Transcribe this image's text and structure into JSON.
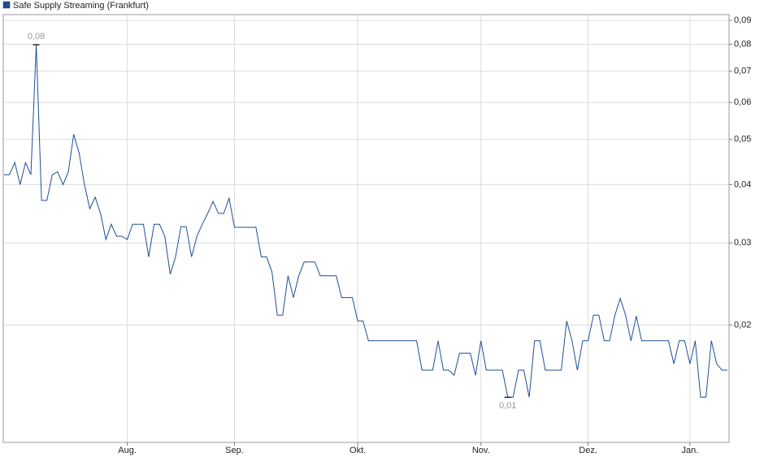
{
  "chart_data": {
    "type": "line",
    "log_scale": true,
    "grid": true,
    "categories": [
      null,
      null,
      null,
      null,
      null,
      null,
      null,
      null,
      null,
      null,
      null,
      null,
      null,
      null,
      null,
      null,
      null,
      null,
      null,
      null,
      null,
      null,
      null,
      "Aug.",
      null,
      null,
      null,
      null,
      null,
      null,
      null,
      null,
      null,
      null,
      null,
      null,
      null,
      null,
      null,
      null,
      null,
      null,
      null,
      "Sep.",
      null,
      null,
      null,
      null,
      null,
      null,
      null,
      null,
      null,
      null,
      null,
      null,
      null,
      null,
      null,
      null,
      null,
      null,
      null,
      null,
      null,
      null,
      "Okt.",
      null,
      null,
      null,
      null,
      null,
      null,
      null,
      null,
      null,
      null,
      null,
      null,
      null,
      null,
      null,
      null,
      null,
      null,
      null,
      null,
      null,
      null,
      "Nov.",
      null,
      null,
      null,
      null,
      null,
      null,
      null,
      null,
      null,
      null,
      null,
      null,
      null,
      null,
      null,
      null,
      null,
      null,
      null,
      "Dez.",
      null,
      null,
      null,
      null,
      null,
      null,
      null,
      null,
      null,
      null,
      null,
      null,
      null,
      null,
      null,
      null,
      null,
      null,
      "Jan.",
      null,
      null,
      null,
      null,
      null,
      null,
      null
    ],
    "series": [
      {
        "name": "Safe Supply Streaming (Frankfurt)",
        "color": "#1c4f96",
        "values": [
          0.042,
          0.042,
          0.0446,
          0.04,
          0.0446,
          0.042,
          0.0798,
          0.037,
          0.037,
          0.042,
          0.0426,
          0.04,
          0.0426,
          0.0513,
          0.0468,
          0.04,
          0.0355,
          0.0376,
          0.0347,
          0.0305,
          0.0329,
          0.031,
          0.031,
          0.0305,
          0.0329,
          0.0329,
          0.0329,
          0.028,
          0.0329,
          0.0329,
          0.031,
          0.0257,
          0.028,
          0.0325,
          0.0325,
          0.028,
          0.031,
          0.0329,
          0.0347,
          0.0368,
          0.0347,
          0.0347,
          0.0374,
          0.0324,
          0.0324,
          0.0324,
          0.0324,
          0.0324,
          0.028,
          0.028,
          0.026,
          0.021,
          0.021,
          0.0255,
          0.0229,
          0.0255,
          0.0273,
          0.0273,
          0.0273,
          0.0255,
          0.0255,
          0.0255,
          0.0255,
          0.0229,
          0.0229,
          0.0229,
          0.0204,
          0.0204,
          0.0185,
          0.0185,
          0.0185,
          0.0185,
          0.0185,
          0.0185,
          0.0185,
          0.0185,
          0.0185,
          0.0185,
          0.016,
          0.016,
          0.016,
          0.0185,
          0.016,
          0.016,
          0.0156,
          0.0174,
          0.0174,
          0.0174,
          0.0156,
          0.0185,
          0.016,
          0.016,
          0.016,
          0.016,
          0.014,
          0.014,
          0.016,
          0.016,
          0.014,
          0.0185,
          0.0185,
          0.016,
          0.016,
          0.016,
          0.016,
          0.0204,
          0.0185,
          0.016,
          0.0185,
          0.0185,
          0.021,
          0.021,
          0.0185,
          0.0185,
          0.021,
          0.0228,
          0.021,
          0.0185,
          0.0209,
          0.0185,
          0.0185,
          0.0185,
          0.0185,
          0.0185,
          0.0185,
          0.0165,
          0.0185,
          0.0185,
          0.0165,
          0.0185,
          0.014,
          0.014,
          0.0185,
          0.0165,
          0.016,
          0.016
        ],
        "value_labels": [
          null,
          null,
          null,
          null,
          null,
          null,
          "0,08",
          null,
          null,
          null,
          null,
          null,
          null,
          null,
          null,
          null,
          null,
          null,
          null,
          null,
          null,
          null,
          null,
          null,
          null,
          null,
          null,
          null,
          null,
          null,
          null,
          null,
          null,
          null,
          null,
          null,
          null,
          null,
          null,
          null,
          null,
          null,
          null,
          null,
          null,
          null,
          null,
          null,
          null,
          null,
          null,
          null,
          null,
          null,
          null,
          null,
          null,
          null,
          null,
          null,
          null,
          null,
          null,
          null,
          null,
          null,
          null,
          null,
          null,
          null,
          null,
          null,
          null,
          null,
          null,
          null,
          null,
          null,
          null,
          null,
          null,
          null,
          null,
          null,
          null,
          null,
          null,
          null,
          null,
          null,
          null,
          null,
          null,
          null,
          "0,01",
          null,
          null,
          null,
          null,
          null,
          null,
          null,
          null,
          null,
          null,
          null,
          null,
          null,
          null,
          null,
          null,
          null,
          null,
          null,
          null,
          null,
          null,
          null,
          null,
          null,
          null,
          null,
          null,
          null,
          null,
          null,
          null,
          null,
          null,
          null,
          null,
          null,
          null,
          null,
          null,
          null
        ]
      }
    ],
    "ylim": [
      0.0112,
      0.0926
    ],
    "yticks": [
      {
        "value": 0.02,
        "label": "0,02"
      },
      {
        "value": 0.03,
        "label": "0,03"
      },
      {
        "value": 0.04,
        "label": "0,04"
      },
      {
        "value": 0.05,
        "label": "0,05"
      },
      {
        "value": 0.06,
        "label": "0,06"
      },
      {
        "value": 0.07,
        "label": "0,07"
      },
      {
        "value": 0.08,
        "label": "0,08"
      },
      {
        "value": 0.09,
        "label": "0,09"
      }
    ]
  }
}
